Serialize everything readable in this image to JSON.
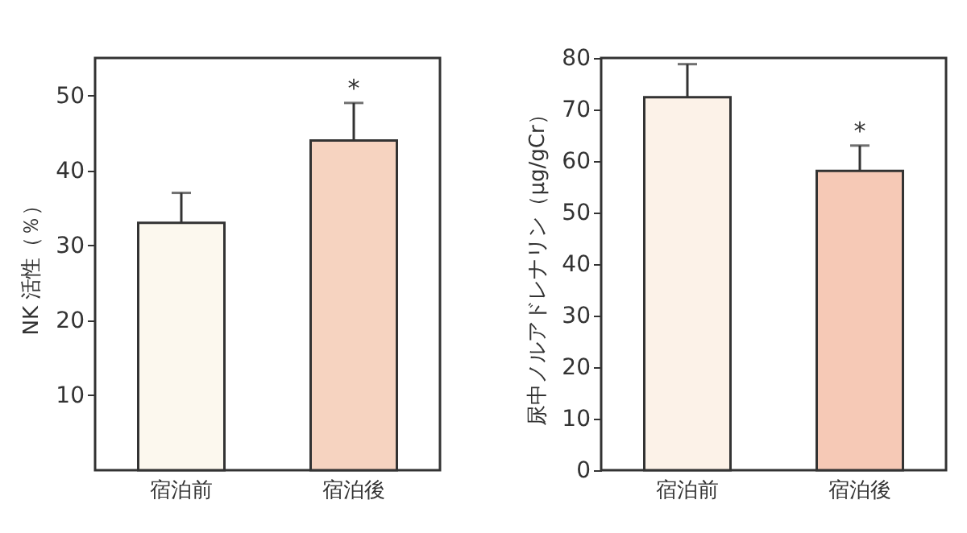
{
  "chart_data": [
    {
      "type": "bar",
      "categories": [
        "宿泊前",
        "宿泊後"
      ],
      "values": [
        33,
        44
      ],
      "colors": [
        "#fcf8ee",
        "#f6d3c0"
      ],
      "errors": [
        [
          33,
          37
        ],
        [
          44,
          49
        ]
      ],
      "ylim": [
        0,
        55
      ],
      "yticks": [
        10,
        20,
        30,
        40,
        50
      ],
      "ylabel": "NK 活性（％）",
      "grid": false,
      "annotations": [
        {
          "text": "*",
          "x": "宿泊後",
          "y": 49
        }
      ]
    },
    {
      "type": "bar",
      "categories": [
        "宿泊前",
        "宿泊後"
      ],
      "values": [
        72.4,
        58.1
      ],
      "colors": [
        "#fcf2e8",
        "#f6c9b6"
      ],
      "errors": [
        [
          72.4,
          78.8
        ],
        [
          58.1,
          63
        ]
      ],
      "ylim": [
        0,
        80
      ],
      "yticks": [
        0,
        10,
        20,
        30,
        40,
        50,
        60,
        70,
        80
      ],
      "ylabel": "尿中ノルアドレナリン（μg/gCr）",
      "grid": false,
      "annotations": [
        {
          "text": "*",
          "x": "宿泊後",
          "y": 63
        }
      ]
    }
  ]
}
